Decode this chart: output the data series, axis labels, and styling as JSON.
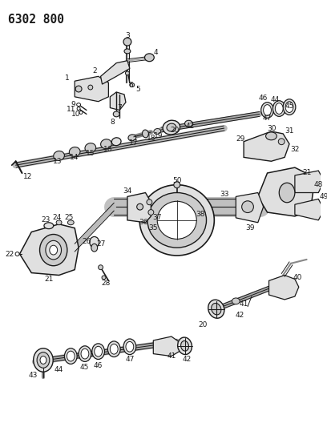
{
  "title": "6302 800",
  "bg_color": "#ffffff",
  "line_color": "#000000",
  "title_fontsize": 10.5,
  "title_weight": "bold",
  "fig_width": 4.08,
  "fig_height": 5.33,
  "dpi": 100,
  "lc": "#1a1a1a",
  "gray1": "#cccccc",
  "gray2": "#e0e0e0",
  "gray3": "#aaaaaa"
}
